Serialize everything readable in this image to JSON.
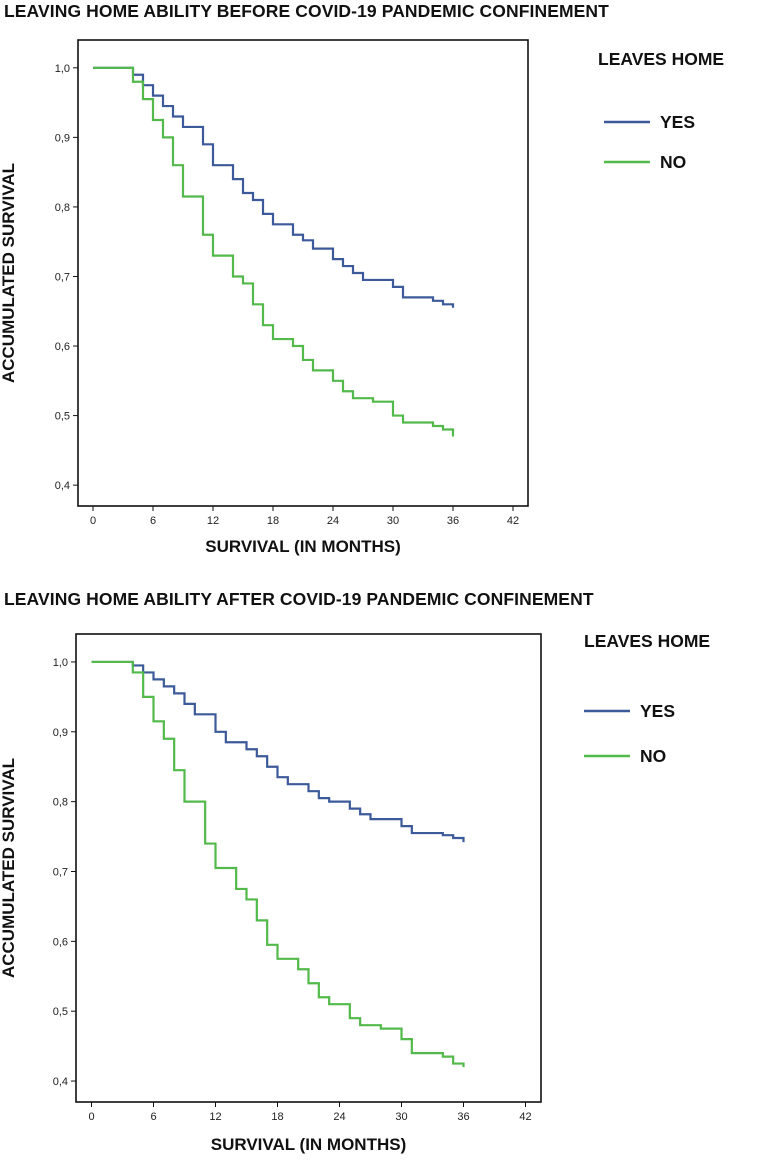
{
  "chart_data": [
    {
      "type": "line",
      "title": "LEAVING HOME ABILITY BEFORE COVID-19 PANDEMIC CONFINEMENT",
      "xlabel": "SURVIVAL (IN MONTHS)",
      "ylabel": "ACCUMULATED SURVIVAL",
      "xlim": [
        -1.5,
        43.5
      ],
      "ylim": [
        0.37,
        1.04
      ],
      "xticks": [
        "0",
        "6",
        "12",
        "18",
        "24",
        "30",
        "36",
        "42"
      ],
      "xtick_values": [
        0,
        6,
        12,
        18,
        24,
        30,
        36,
        42
      ],
      "yticks": [
        "1,0",
        "0,9",
        "0,8",
        "0,7",
        "0,6",
        "0,5",
        "0,4"
      ],
      "ytick_values": [
        1.0,
        0.9,
        0.8,
        0.7,
        0.6,
        0.5,
        0.4
      ],
      "grid": false,
      "legend": {
        "title": "LEAVES HOME",
        "position": "right"
      },
      "series": [
        {
          "name": "YES",
          "color": "#3c5a9a",
          "step": true,
          "x": [
            0,
            4,
            5,
            6,
            7,
            8,
            9,
            11,
            12,
            14,
            15,
            16,
            17,
            18,
            20,
            21,
            22,
            24,
            25,
            26,
            27,
            30,
            31,
            34,
            35,
            36
          ],
          "y": [
            1.0,
            0.99,
            0.975,
            0.96,
            0.945,
            0.93,
            0.915,
            0.89,
            0.86,
            0.84,
            0.82,
            0.81,
            0.79,
            0.775,
            0.76,
            0.752,
            0.74,
            0.725,
            0.715,
            0.705,
            0.695,
            0.685,
            0.67,
            0.665,
            0.66,
            0.655
          ]
        },
        {
          "name": "NO",
          "color": "#52b94a",
          "step": true,
          "x": [
            0,
            4,
            5,
            6,
            7,
            8,
            9,
            11,
            12,
            14,
            15,
            16,
            17,
            18,
            20,
            21,
            22,
            24,
            25,
            26,
            28,
            30,
            31,
            34,
            35,
            36
          ],
          "y": [
            1.0,
            0.98,
            0.955,
            0.925,
            0.9,
            0.86,
            0.815,
            0.76,
            0.73,
            0.7,
            0.69,
            0.66,
            0.63,
            0.61,
            0.6,
            0.58,
            0.565,
            0.55,
            0.535,
            0.525,
            0.52,
            0.5,
            0.49,
            0.485,
            0.48,
            0.47
          ]
        }
      ]
    },
    {
      "type": "line",
      "title": "LEAVING HOME ABILITY AFTER COVID-19 PANDEMIC CONFINEMENT",
      "xlabel": "SURVIVAL (IN MONTHS)",
      "ylabel": "ACCUMULATED SURVIVAL",
      "xlim": [
        -1.5,
        43.5
      ],
      "ylim": [
        0.37,
        1.04
      ],
      "xticks": [
        "0",
        "6",
        "12",
        "18",
        "24",
        "30",
        "36",
        "42"
      ],
      "xtick_values": [
        0,
        6,
        12,
        18,
        24,
        30,
        36,
        42
      ],
      "yticks": [
        "1,0",
        "0,9",
        "0,8",
        "0,7",
        "0,6",
        "0,5",
        "0,4"
      ],
      "ytick_values": [
        1.0,
        0.9,
        0.8,
        0.7,
        0.6,
        0.5,
        0.4
      ],
      "grid": false,
      "legend": {
        "title": "LEAVES HOME",
        "position": "right"
      },
      "series": [
        {
          "name": "YES",
          "color": "#3c5a9a",
          "step": true,
          "x": [
            0,
            4,
            5,
            6,
            7,
            8,
            9,
            10,
            12,
            13,
            15,
            16,
            17,
            18,
            19,
            21,
            22,
            23,
            25,
            26,
            27,
            30,
            31,
            34,
            35,
            36
          ],
          "y": [
            1.0,
            0.995,
            0.985,
            0.975,
            0.965,
            0.955,
            0.94,
            0.925,
            0.9,
            0.885,
            0.875,
            0.865,
            0.85,
            0.835,
            0.825,
            0.815,
            0.805,
            0.8,
            0.79,
            0.782,
            0.775,
            0.765,
            0.755,
            0.752,
            0.748,
            0.742
          ]
        },
        {
          "name": "NO",
          "color": "#52b94a",
          "step": true,
          "x": [
            0,
            4,
            5,
            6,
            7,
            8,
            9,
            11,
            12,
            14,
            15,
            16,
            17,
            18,
            20,
            21,
            22,
            23,
            25,
            26,
            28,
            30,
            31,
            34,
            35,
            36
          ],
          "y": [
            1.0,
            0.985,
            0.95,
            0.915,
            0.89,
            0.845,
            0.8,
            0.74,
            0.705,
            0.675,
            0.66,
            0.63,
            0.595,
            0.575,
            0.56,
            0.54,
            0.52,
            0.51,
            0.49,
            0.48,
            0.475,
            0.46,
            0.44,
            0.435,
            0.425,
            0.42
          ]
        }
      ]
    }
  ]
}
